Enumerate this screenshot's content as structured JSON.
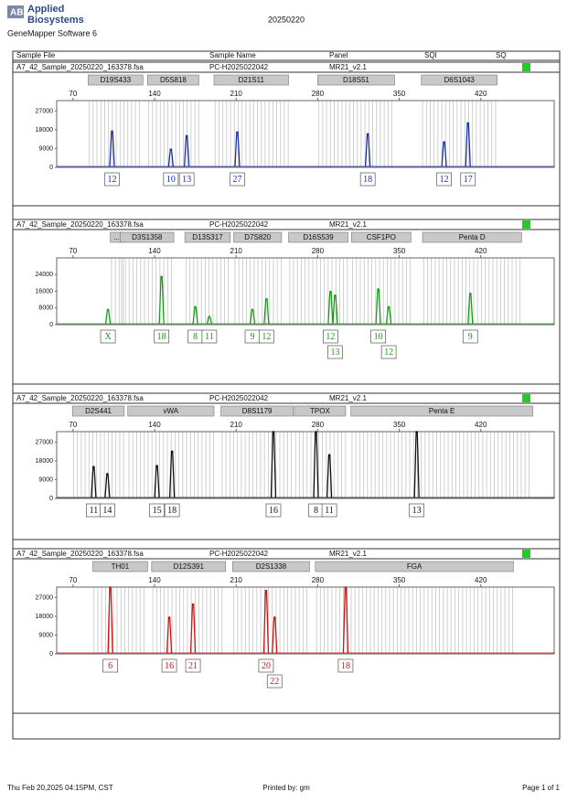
{
  "header": {
    "logo_line1": "Applied",
    "logo_line2": "Biosystems",
    "software": "GeneMapper Software 6",
    "report_date": "20250220"
  },
  "columns": [
    "Sample File",
    "Sample Name",
    "Panel",
    "SQI",
    "SQ"
  ],
  "panels": [
    {
      "sample_file": "A7_42_Sample_20250220_163378.fsa",
      "sample_name": "PC-H2025022042",
      "panel": "MR21_v2.1",
      "color": "#1a2fa0",
      "xlim": [
        56,
        483
      ],
      "ylim": [
        0,
        32000
      ],
      "xticks": [
        70,
        140,
        210,
        280,
        350,
        420
      ],
      "yticks": [
        0,
        9000,
        18000,
        27000
      ],
      "markers": [
        {
          "name": "D19S433",
          "start": 83,
          "end": 130
        },
        {
          "name": "D5S818",
          "start": 134,
          "end": 178
        },
        {
          "name": "D21S11",
          "start": 191,
          "end": 255
        },
        {
          "name": "D18S51",
          "start": 280,
          "end": 346
        },
        {
          "name": "D6S1043",
          "start": 369,
          "end": 434
        }
      ],
      "peaks": [
        {
          "allele": "12",
          "x": 103.5,
          "height": 17400
        },
        {
          "allele": "10",
          "x": 154,
          "height": 8700
        },
        {
          "allele": "13",
          "x": 167.6,
          "height": 15200
        },
        {
          "allele": "27",
          "x": 211,
          "height": 17000
        },
        {
          "allele": "18",
          "x": 323,
          "height": 16100
        },
        {
          "allele": "12",
          "x": 388.5,
          "height": 12200
        },
        {
          "allele": "17",
          "x": 409,
          "height": 21300
        }
      ]
    },
    {
      "sample_file": "A7_42_Sample_20250220_163378.fsa",
      "sample_name": "PC-H2025022042",
      "panel": "MR21_v2.1",
      "color": "#1a9a1a",
      "xlim": [
        56,
        483
      ],
      "ylim": [
        0,
        32000
      ],
      "xticks": [
        70,
        140,
        210,
        280,
        350,
        420
      ],
      "yticks": [
        0,
        8000,
        16000,
        24000
      ],
      "markers": [
        {
          "name": "...",
          "start": 102,
          "end": 113
        },
        {
          "name": "D3S1358",
          "start": 110.6,
          "end": 156.5
        },
        {
          "name": "D13S317",
          "start": 166,
          "end": 205
        },
        {
          "name": "D7S820",
          "start": 208,
          "end": 249
        },
        {
          "name": "D16S539",
          "start": 255,
          "end": 306
        },
        {
          "name": "CSF1PO",
          "start": 309,
          "end": 360
        },
        {
          "name": "Penta D",
          "start": 370,
          "end": 455
        }
      ],
      "peaks": [
        {
          "allele": "X",
          "x": 100,
          "height": 7300
        },
        {
          "allele": "18",
          "x": 146,
          "height": 23100
        },
        {
          "allele": "8",
          "x": 175,
          "height": 8600
        },
        {
          "allele": "11",
          "x": 187,
          "height": 3900
        },
        {
          "allele": "9",
          "x": 224,
          "height": 7300
        },
        {
          "allele": "12",
          "x": 236,
          "height": 12400
        },
        {
          "allele": "12",
          "x": 291,
          "height": 15900
        },
        {
          "allele": "13",
          "x": 295,
          "height": 14100
        },
        {
          "allele": "10",
          "x": 332,
          "height": 17100
        },
        {
          "allele": "12",
          "x": 341,
          "height": 8600
        },
        {
          "allele": "9",
          "x": 411,
          "height": 15000
        }
      ]
    },
    {
      "sample_file": "A7_42_Sample_20250220_163378.fsa",
      "sample_name": "PC-H2025022042",
      "panel": "MR21_v2.1",
      "color": "#111111",
      "xlim": [
        56,
        483
      ],
      "ylim": [
        0,
        32000
      ],
      "xticks": [
        70,
        140,
        210,
        280,
        350,
        420
      ],
      "yticks": [
        0,
        9000,
        18000,
        27000
      ],
      "markers": [
        {
          "name": "D2S441",
          "start": 69.5,
          "end": 114
        },
        {
          "name": "vWA",
          "start": 117,
          "end": 191
        },
        {
          "name": "D8S1179",
          "start": 197,
          "end": 259
        },
        {
          "name": "TPOX",
          "start": 260,
          "end": 304
        },
        {
          "name": "Penta E",
          "start": 308.5,
          "end": 464.6
        }
      ],
      "peaks": [
        {
          "allele": "11",
          "x": 87.7,
          "height": 15200
        },
        {
          "allele": "14",
          "x": 99.5,
          "height": 11800
        },
        {
          "allele": "15",
          "x": 142,
          "height": 15700
        },
        {
          "allele": "18",
          "x": 155,
          "height": 22600
        },
        {
          "allele": "16",
          "x": 242,
          "height": 32000
        },
        {
          "allele": "8",
          "x": 278.5,
          "height": 32000
        },
        {
          "allele": "11",
          "x": 290,
          "height": 20900
        },
        {
          "allele": "13",
          "x": 365,
          "height": 32000
        }
      ]
    },
    {
      "sample_file": "A7_42_Sample_20250220_163378.fsa",
      "sample_name": "PC-H2025022042",
      "panel": "MR21_v2.1",
      "color": "#c81414",
      "xlim": [
        56,
        483
      ],
      "ylim": [
        0,
        32000
      ],
      "xticks": [
        70,
        140,
        210,
        280,
        350,
        420
      ],
      "yticks": [
        0,
        9000,
        18000,
        27000
      ],
      "markers": [
        {
          "name": "TH01",
          "start": 87,
          "end": 134
        },
        {
          "name": "D12S391",
          "start": 137.5,
          "end": 201
        },
        {
          "name": "D2S1338",
          "start": 207,
          "end": 273
        },
        {
          "name": "FGA",
          "start": 278,
          "end": 448
        }
      ],
      "peaks": [
        {
          "allele": "6",
          "x": 102,
          "height": 32000
        },
        {
          "allele": "16",
          "x": 152.6,
          "height": 17600
        },
        {
          "allele": "21",
          "x": 173,
          "height": 23900
        },
        {
          "allele": "20",
          "x": 235.7,
          "height": 30400
        },
        {
          "allele": "22",
          "x": 243,
          "height": 17600
        },
        {
          "allele": "18",
          "x": 304,
          "height": 32000
        }
      ]
    }
  ],
  "footer": {
    "printed_at": "Thu Feb 20,2025 04:15PM, CST",
    "printed_by": "Printed by: gm",
    "page": "Page 1 of 1"
  }
}
